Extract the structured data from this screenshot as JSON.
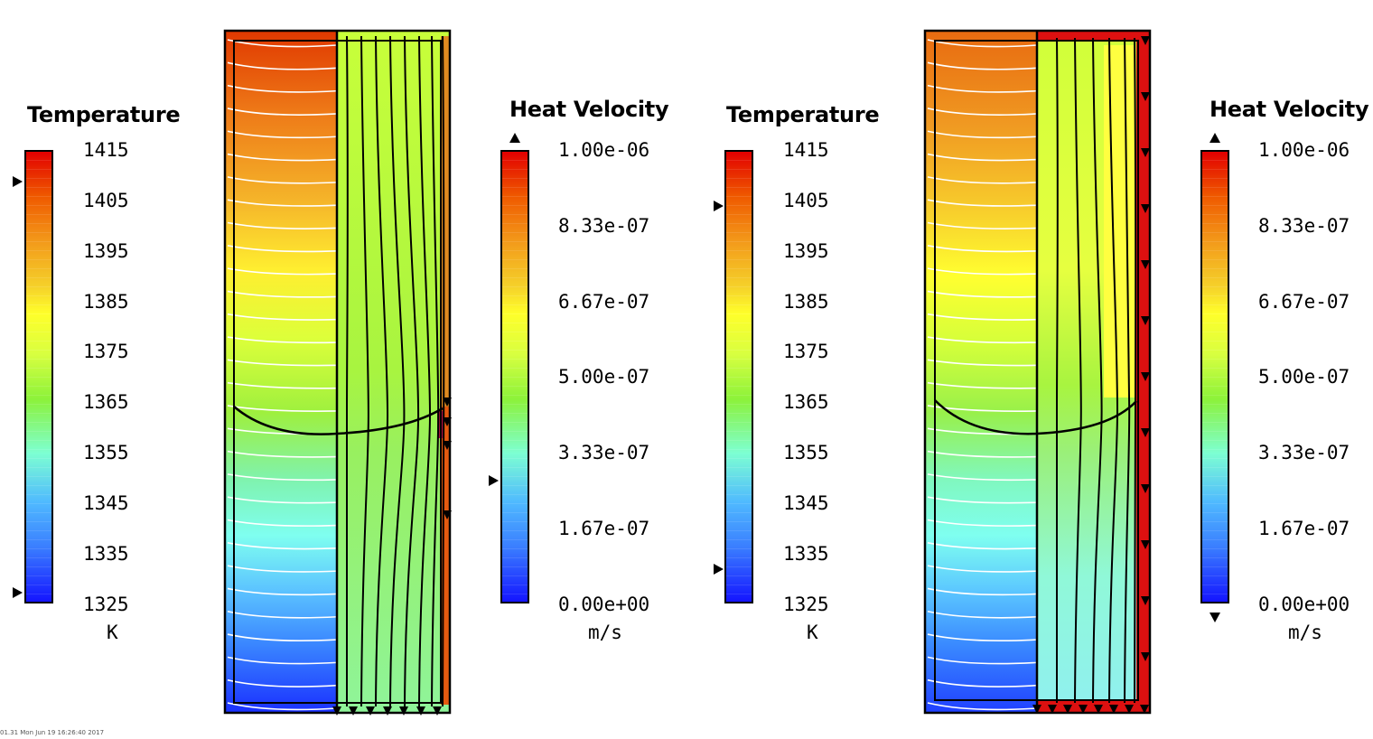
{
  "legends": {
    "left_temperature": {
      "title": "Temperature",
      "ticks": [
        "1415",
        "1405",
        "1395",
        "1385",
        "1375",
        "1365",
        "1355",
        "1345",
        "1335",
        "1325"
      ],
      "unit": "K"
    },
    "left_velocity": {
      "title": "Heat Velocity",
      "ticks": [
        "1.00e-06",
        "8.33e-07",
        "6.67e-07",
        "5.00e-07",
        "3.33e-07",
        "1.67e-07",
        "0.00e+00"
      ],
      "unit": "m/s"
    },
    "right_temperature": {
      "title": "Temperature",
      "ticks": [
        "1415",
        "1405",
        "1395",
        "1385",
        "1375",
        "1365",
        "1355",
        "1345",
        "1335",
        "1325"
      ],
      "unit": "K"
    },
    "right_velocity": {
      "title": "Heat Velocity",
      "ticks": [
        "1.00e-06",
        "8.33e-07",
        "6.67e-07",
        "5.00e-07",
        "3.33e-07",
        "1.67e-07",
        "0.00e+00"
      ],
      "unit": "m/s"
    }
  },
  "colors": {
    "hot": "#e20000",
    "mid": "#ffff2a",
    "cool_green": "#8cf23a",
    "cold": "#1414ff",
    "isotherm": "#ffffff",
    "streamline": "#000000"
  },
  "footer": "01.31 Mon Jun 19 16:26:40 2017"
}
